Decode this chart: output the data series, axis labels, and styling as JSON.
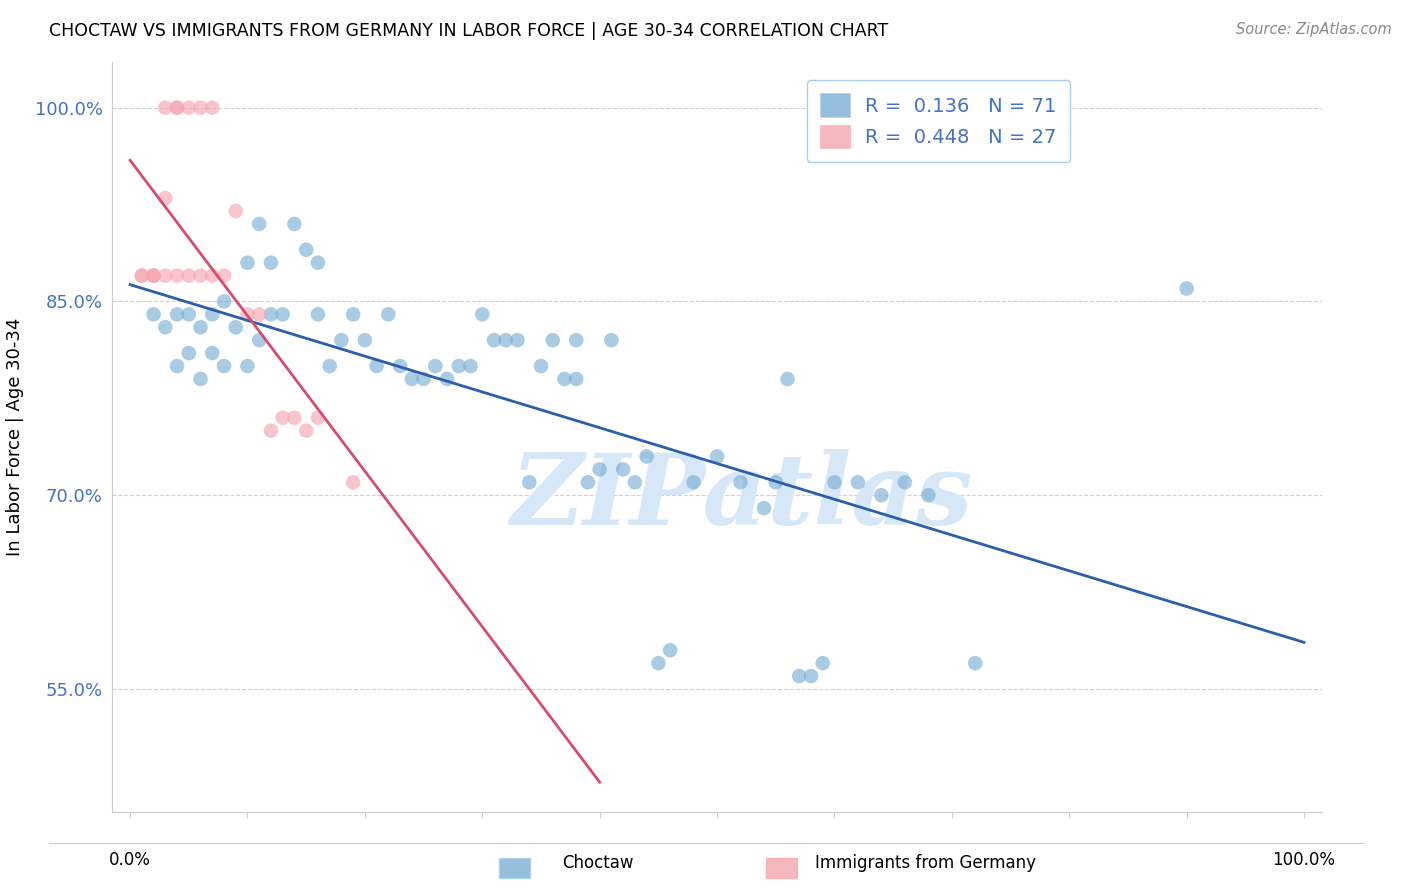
{
  "title": "CHOCTAW VS IMMIGRANTS FROM GERMANY IN LABOR FORCE | AGE 30-34 CORRELATION CHART",
  "source": "Source: ZipAtlas.com",
  "ylabel": "In Labor Force | Age 30-34",
  "legend_label_blue": "Choctaw",
  "legend_label_pink": "Immigrants from Germany",
  "R_blue": 0.136,
  "N_blue": 71,
  "R_pink": 0.448,
  "N_pink": 27,
  "ymin": 0.455,
  "ymax": 1.035,
  "xmin": -0.015,
  "xmax": 1.015,
  "blue_color": "#7BAFD4",
  "pink_color": "#F4A7B0",
  "trend_blue": "#2B5EAB",
  "trend_pink": "#D44C6E",
  "ytick_color": "#4472C4",
  "watermark_color": "#D6E8F7",
  "blue_x": [
    0.02,
    0.03,
    0.04,
    0.04,
    0.05,
    0.05,
    0.06,
    0.06,
    0.07,
    0.07,
    0.08,
    0.08,
    0.09,
    0.1,
    0.1,
    0.11,
    0.11,
    0.12,
    0.12,
    0.13,
    0.14,
    0.15,
    0.16,
    0.16,
    0.17,
    0.18,
    0.19,
    0.2,
    0.21,
    0.22,
    0.23,
    0.24,
    0.25,
    0.26,
    0.27,
    0.28,
    0.29,
    0.3,
    0.31,
    0.32,
    0.33,
    0.34,
    0.35,
    0.36,
    0.37,
    0.38,
    0.38,
    0.39,
    0.4,
    0.41,
    0.42,
    0.43,
    0.44,
    0.45,
    0.46,
    0.48,
    0.5,
    0.52,
    0.54,
    0.55,
    0.56,
    0.57,
    0.58,
    0.59,
    0.6,
    0.62,
    0.64,
    0.66,
    0.68,
    0.72,
    0.9
  ],
  "blue_y": [
    0.84,
    0.83,
    0.8,
    0.84,
    0.81,
    0.84,
    0.79,
    0.83,
    0.81,
    0.84,
    0.8,
    0.85,
    0.83,
    0.8,
    0.88,
    0.82,
    0.91,
    0.84,
    0.88,
    0.84,
    0.91,
    0.89,
    0.84,
    0.88,
    0.8,
    0.82,
    0.84,
    0.82,
    0.8,
    0.84,
    0.8,
    0.79,
    0.79,
    0.8,
    0.79,
    0.8,
    0.8,
    0.84,
    0.82,
    0.82,
    0.82,
    0.71,
    0.8,
    0.82,
    0.79,
    0.82,
    0.79,
    0.71,
    0.72,
    0.82,
    0.72,
    0.71,
    0.73,
    0.57,
    0.58,
    0.71,
    0.73,
    0.71,
    0.69,
    0.71,
    0.79,
    0.56,
    0.56,
    0.57,
    0.71,
    0.71,
    0.7,
    0.71,
    0.7,
    0.57,
    0.86
  ],
  "pink_x": [
    0.01,
    0.01,
    0.02,
    0.02,
    0.02,
    0.03,
    0.03,
    0.03,
    0.04,
    0.04,
    0.04,
    0.05,
    0.05,
    0.06,
    0.06,
    0.07,
    0.07,
    0.08,
    0.09,
    0.1,
    0.11,
    0.12,
    0.13,
    0.14,
    0.15,
    0.16,
    0.19
  ],
  "pink_y": [
    0.87,
    0.87,
    0.87,
    0.87,
    0.87,
    0.93,
    1.0,
    0.87,
    1.0,
    1.0,
    0.87,
    1.0,
    0.87,
    1.0,
    0.87,
    0.87,
    1.0,
    0.87,
    0.92,
    0.84,
    0.84,
    0.75,
    0.76,
    0.76,
    0.75,
    0.76,
    0.71
  ],
  "blue_trend_x": [
    0.0,
    1.0
  ],
  "pink_trend_x": [
    0.0,
    0.4
  ]
}
